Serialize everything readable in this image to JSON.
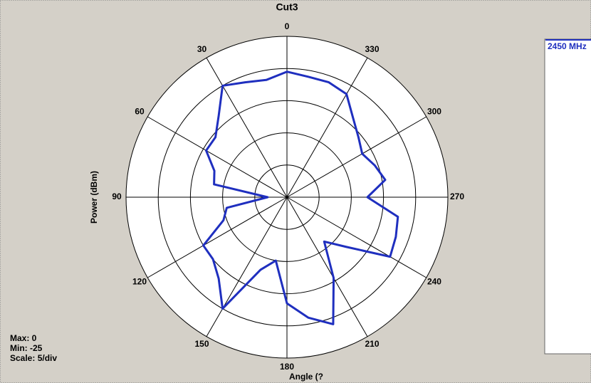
{
  "chart_data": {
    "type": "polar",
    "title": "Cut3",
    "r_label": "Power (dBm)",
    "theta_label": "Angle (?",
    "theta_direction": "counterclockwise",
    "theta_zero": "top",
    "rlim": [
      -25,
      0
    ],
    "rticks": [
      -20,
      -15,
      -10,
      -5,
      0
    ],
    "thetaticks": [
      0,
      30,
      60,
      90,
      120,
      150,
      180,
      210,
      240,
      270,
      300,
      330
    ],
    "theta": [
      0,
      10,
      20,
      30,
      40,
      50,
      60,
      70,
      80,
      90,
      100,
      110,
      120,
      130,
      140,
      150,
      160,
      170,
      180,
      190,
      200,
      210,
      220,
      230,
      240,
      250,
      260,
      270,
      280,
      290,
      300,
      310,
      320,
      330,
      340,
      350
    ],
    "series": [
      {
        "name": "2450 MHz",
        "color": "#1f2fbf",
        "values": [
          -5.5,
          -6.5,
          -6,
          -5,
          -8.5,
          -10.5,
          -10.5,
          -13,
          -13.5,
          -22,
          -15.5,
          -14.5,
          -10,
          -10,
          -8.5,
          -5,
          -13,
          -15,
          -8.5,
          -6,
          -4,
          -10.5,
          -16,
          -13,
          -6.5,
          -7,
          -7.5,
          -12.5,
          -9.5,
          -10.5,
          -11.5,
          -10.5,
          -9,
          -6.5,
          -6,
          -6
        ]
      }
    ],
    "annotations": [
      "Max: 0",
      "Min: -25",
      "Scale: 5/div"
    ]
  }
}
